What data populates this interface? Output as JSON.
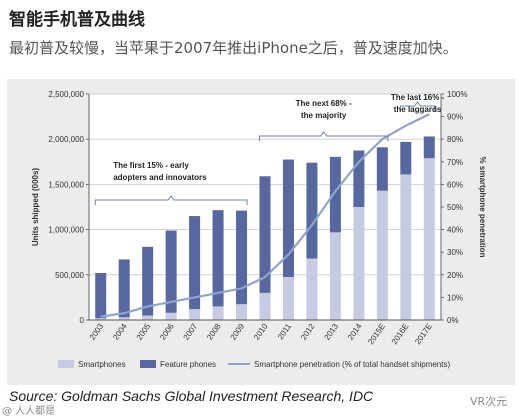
{
  "header": {
    "title": "智能手机普及曲线",
    "subtitle": "最初普及较慢，当苹果于2007年推出iPhone之后，普及速度加快。"
  },
  "footer": {
    "source": "Source: Goldman Sachs Global Investment Research, IDC"
  },
  "watermarks": {
    "left": "@ 人人都是",
    "right": "VR次元"
  },
  "colors": {
    "smartphones": "#c5cbe3",
    "feature_phones": "#56689f",
    "penetration_line": "#8fa3d0",
    "bracket": "#6b82b8"
  },
  "chart_data": {
    "type": "bar",
    "categories": [
      "2003",
      "2004",
      "2005",
      "2006",
      "2007",
      "2008",
      "2009",
      "2010",
      "2011",
      "2012",
      "2013",
      "2014",
      "2015E",
      "2016E",
      "2017E"
    ],
    "series": [
      {
        "name": "Smartphones",
        "kind": "stacked-bar",
        "values": [
          20000,
          30000,
          50000,
          80000,
          120000,
          150000,
          175000,
          300000,
          475000,
          680000,
          970000,
          1250000,
          1430000,
          1610000,
          1790000
        ]
      },
      {
        "name": "Feature phones",
        "kind": "stacked-bar",
        "values": [
          500000,
          640000,
          760000,
          910000,
          1030000,
          1065000,
          1035000,
          1290000,
          1300000,
          1060000,
          835000,
          625000,
          480000,
          360000,
          240000
        ]
      },
      {
        "name": "Smartphone penetration (% of total handset shipments)",
        "kind": "line",
        "axis": "right",
        "values": [
          1.5,
          3,
          6,
          8,
          10,
          12,
          14,
          19,
          29,
          42,
          57,
          70,
          80,
          86,
          91
        ]
      }
    ],
    "ylabel": "Units shipped (000s)",
    "ylim": [
      0,
      2500000
    ],
    "yticks": [
      "0",
      "500,000",
      "1,000,000",
      "1,500,000",
      "2,000,000",
      "2,500,000"
    ],
    "y2label": "% smartphone penetration",
    "y2lim": [
      0,
      100
    ],
    "y2ticks": [
      "0%",
      "10%",
      "20%",
      "30%",
      "40%",
      "50%",
      "60%",
      "70%",
      "80%",
      "90%",
      "100%"
    ],
    "legend": [
      "Smartphones",
      "Feature phones",
      "Smartphone penetration (% of total handset shipments)"
    ],
    "legend_position": "bottom",
    "annotations": [
      {
        "text": [
          "The first 15% - early",
          "adopters and innovators"
        ],
        "from": "2003",
        "to": "2009"
      },
      {
        "text": [
          "The next 68% -",
          "the majority"
        ],
        "from": "2010",
        "to": "2015E"
      },
      {
        "text": [
          "The last 16% -",
          "the laggards"
        ],
        "from": "2016E",
        "to": "2017E"
      }
    ]
  }
}
